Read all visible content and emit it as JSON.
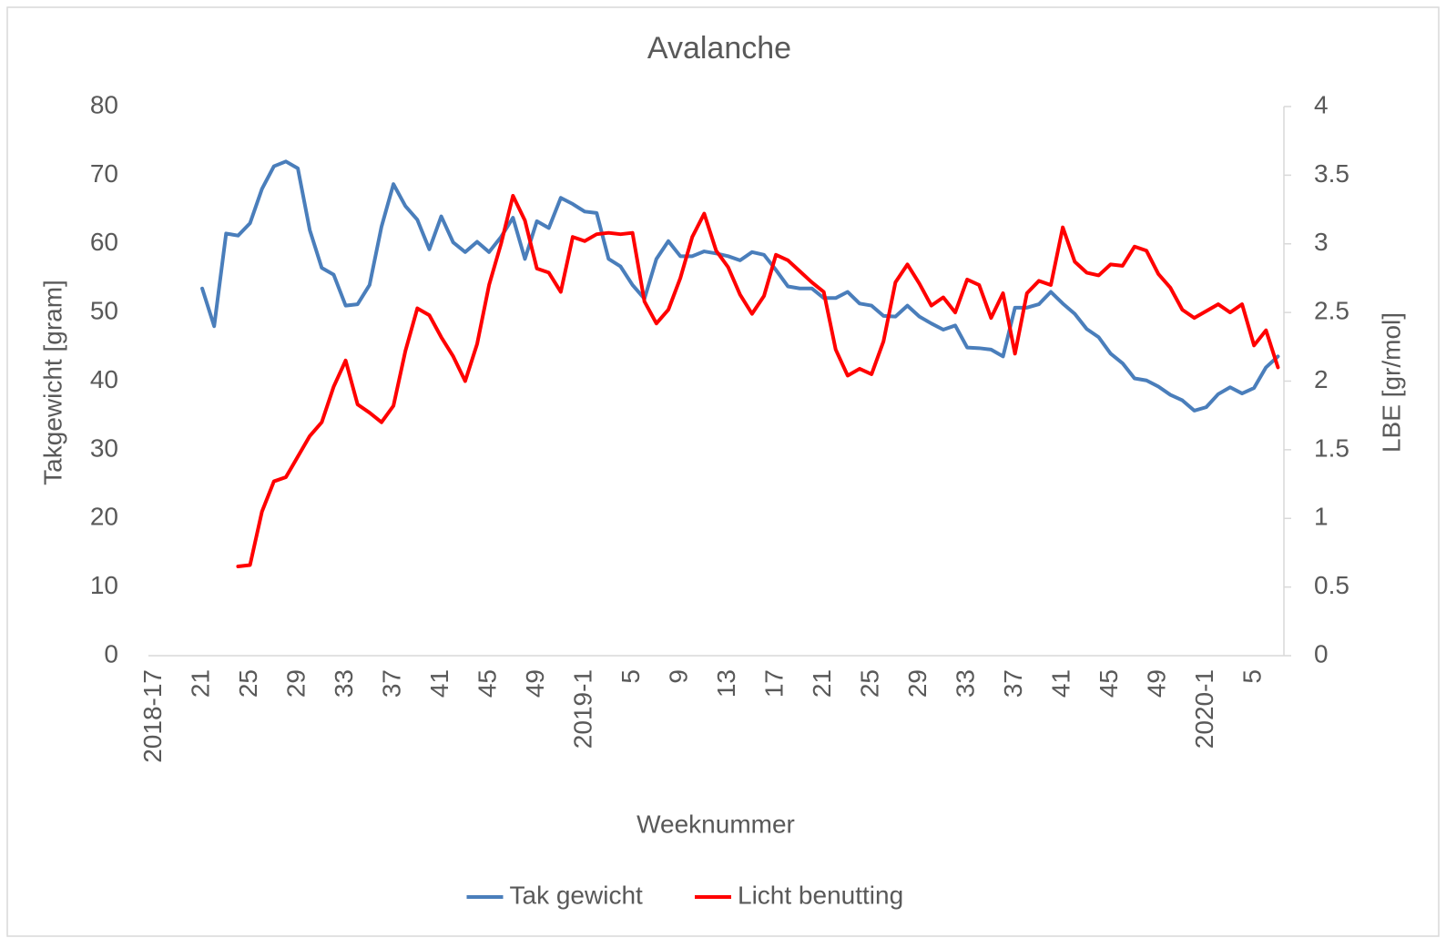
{
  "chart_data": {
    "type": "line",
    "title": "Avalanche",
    "x_label": "Weeknummer",
    "y_label": "Takgewicht [gram]",
    "y2_label": "LBE [gr/mol]",
    "categories": [
      "2018-17",
      null,
      null,
      null,
      "21",
      null,
      null,
      null,
      "25",
      null,
      null,
      null,
      "29",
      null,
      null,
      null,
      "33",
      null,
      null,
      null,
      "37",
      null,
      null,
      null,
      "41",
      null,
      null,
      null,
      "45",
      null,
      null,
      null,
      "49",
      null,
      null,
      null,
      "2019-1",
      null,
      null,
      null,
      "5",
      null,
      null,
      null,
      "9",
      null,
      null,
      null,
      "13",
      null,
      null,
      null,
      "17",
      null,
      null,
      null,
      "21",
      null,
      null,
      null,
      "25",
      null,
      null,
      null,
      "29",
      null,
      null,
      null,
      "33",
      null,
      null,
      null,
      "37",
      null,
      null,
      null,
      "41",
      null,
      null,
      null,
      "45",
      null,
      null,
      null,
      "49",
      null,
      null,
      null,
      "2020-1",
      null,
      null,
      null,
      "5",
      null,
      null
    ],
    "series": [
      {
        "name": "Tak gewicht",
        "color": "#4a7ebb",
        "axis": "y",
        "values": [
          null,
          null,
          null,
          null,
          53.5,
          48,
          61.5,
          61.2,
          63,
          68,
          71.3,
          72,
          71,
          62,
          56.5,
          55.5,
          51,
          51.2,
          54,
          62.5,
          68.7,
          65.5,
          63.5,
          59.2,
          64,
          60.2,
          58.8,
          60.3,
          58.8,
          61,
          63.8,
          57.8,
          63.3,
          62.3,
          66.7,
          65.8,
          64.7,
          64.5,
          57.8,
          56.7,
          54,
          52,
          57.8,
          60.4,
          58.2,
          58.2,
          58.9,
          58.6,
          58.2,
          57.6,
          58.8,
          58.4,
          56.2,
          53.8,
          53.5,
          53.5,
          52.1,
          52.1,
          53,
          51.3,
          51,
          49.5,
          49.4,
          51,
          49.4,
          48.4,
          47.5,
          48.1,
          44.9,
          44.8,
          44.6,
          43.6,
          50.7,
          50.7,
          51.2,
          53,
          51.3,
          49.8,
          47.6,
          46.4,
          44,
          42.6,
          40.4,
          40.1,
          39.2,
          38,
          37.2,
          35.7,
          36.2,
          38.1,
          39.1,
          38.2,
          39,
          42,
          43.6
        ]
      },
      {
        "name": "Licht benutting",
        "color": "#ff0000",
        "axis": "y2",
        "values": [
          null,
          null,
          null,
          null,
          null,
          null,
          null,
          0.65,
          0.66,
          1.05,
          1.27,
          1.3,
          1.45,
          1.6,
          1.7,
          1.96,
          2.15,
          1.83,
          1.77,
          1.7,
          1.82,
          2.22,
          2.53,
          2.48,
          2.32,
          2.18,
          2.0,
          2.27,
          2.7,
          3.0,
          3.35,
          3.17,
          2.82,
          2.79,
          2.65,
          3.05,
          3.02,
          3.07,
          3.08,
          3.07,
          3.08,
          2.58,
          2.42,
          2.52,
          2.75,
          3.05,
          3.22,
          2.95,
          2.83,
          2.63,
          2.49,
          2.62,
          2.92,
          2.88,
          2.8,
          2.72,
          2.65,
          2.23,
          2.04,
          2.09,
          2.05,
          2.29,
          2.72,
          2.85,
          2.71,
          2.55,
          2.61,
          2.5,
          2.74,
          2.7,
          2.46,
          2.64,
          2.2,
          2.64,
          2.73,
          2.7,
          3.12,
          2.87,
          2.79,
          2.77,
          2.85,
          2.84,
          2.98,
          2.95,
          2.78,
          2.68,
          2.52,
          2.46,
          2.51,
          2.56,
          2.5,
          2.56,
          2.26,
          2.37,
          2.1
        ]
      }
    ],
    "ylim": [
      0,
      80
    ],
    "yticks": [
      0,
      10,
      20,
      30,
      40,
      50,
      60,
      70,
      80
    ],
    "y2lim": [
      0,
      4
    ],
    "y2ticks": [
      0,
      0.5,
      1,
      1.5,
      2,
      2.5,
      3,
      3.5,
      4
    ],
    "grid": false,
    "legend": "bottom"
  }
}
